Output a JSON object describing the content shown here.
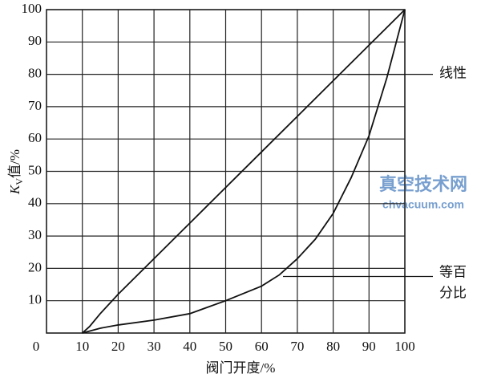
{
  "chart_data": {
    "type": "line",
    "x_label": "阀门开度/%",
    "y_label": {
      "main": "K",
      "sub": "V",
      "rest": "值/%"
    },
    "xlim": [
      0,
      100
    ],
    "ylim": [
      0,
      100
    ],
    "xticks": [
      0,
      10,
      20,
      30,
      40,
      50,
      60,
      70,
      80,
      90,
      100
    ],
    "yticks": [
      10,
      20,
      30,
      40,
      50,
      60,
      70,
      80,
      90,
      100
    ],
    "grid": true,
    "series": [
      {
        "name": "线性",
        "color": "#111111",
        "x": [
          10,
          12,
          15,
          20,
          40,
          60,
          80,
          100
        ],
        "values": [
          0,
          2,
          6,
          12,
          34,
          56,
          78,
          100
        ]
      },
      {
        "name_lines": [
          "等百",
          "分比"
        ],
        "color": "#111111",
        "x": [
          10,
          15,
          20,
          30,
          40,
          45,
          50,
          60,
          65,
          70,
          75,
          80,
          85,
          90,
          95,
          100
        ],
        "values": [
          0,
          1.5,
          2.5,
          4,
          6,
          8,
          10,
          14.5,
          18,
          23,
          29,
          37,
          48,
          61,
          79,
          100
        ]
      }
    ],
    "watermark": [
      "真空技术网",
      "chvacuum.com"
    ]
  }
}
